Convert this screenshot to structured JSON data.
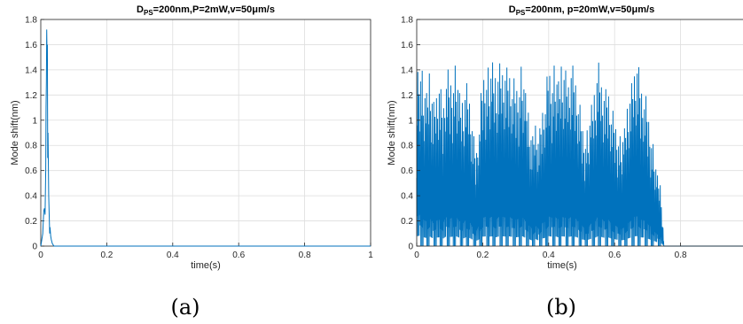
{
  "chart_data": [
    {
      "type": "line",
      "title": {
        "main": "D",
        "sub": "PS",
        "rest": "=200nm,P=2mW,v=50μm/s"
      },
      "xlabel": "time(s)",
      "ylabel": "Mode shift(nm)",
      "xlim": [
        0,
        1
      ],
      "ylim": [
        0,
        1.8
      ],
      "xticks": [
        "0",
        "0.2",
        "0.4",
        "0.6",
        "0.8",
        "1"
      ],
      "yticks": [
        "0",
        "0.2",
        "0.4",
        "0.6",
        "0.8",
        "1",
        "1.2",
        "1.4",
        "1.6",
        "1.8"
      ],
      "grid": true,
      "line_color": "#0072BD",
      "series": [
        {
          "x": [
            0,
            0.003,
            0.006,
            0.009,
            0.011,
            0.013,
            0.015,
            0.016,
            0.017,
            0.018,
            0.019,
            0.02,
            0.021,
            0.022,
            0.023,
            0.024,
            0.025,
            0.026,
            0.027,
            0.028,
            0.03,
            0.032,
            0.035,
            0.04,
            0.1,
            0.3,
            0.5,
            0.7,
            0.9,
            1
          ],
          "y": [
            0,
            0.05,
            0.1,
            0.28,
            0.3,
            0.25,
            0.6,
            1.1,
            1.3,
            1.72,
            1.5,
            1.6,
            0.7,
            0.9,
            0.65,
            0.4,
            0.3,
            0.2,
            0.1,
            0.15,
            0.08,
            0.05,
            0.02,
            0,
            0,
            0,
            0,
            0,
            0,
            0
          ]
        }
      ]
    },
    {
      "type": "line",
      "title": {
        "main": "D",
        "sub": "PS",
        "rest": "=200nm, p=20mW,v=50μm/s"
      },
      "xlabel": "time(s)",
      "ylabel": "Mode shift(nm)",
      "xlim": [
        0,
        1
      ],
      "ylim": [
        0,
        1.8
      ],
      "xticks": [
        "0",
        "0.2",
        "0.4",
        "0.6",
        "0.8",
        ""
      ],
      "yticks": [
        "0",
        "0.2",
        "0.4",
        "0.6",
        "0.8",
        "1",
        "1.2",
        "1.4",
        "1.6",
        "1.8"
      ],
      "grid": true,
      "line_color": "#0072BD",
      "series": [
        {
          "x": [
            0,
            0.01,
            0.02,
            0.03,
            0.04,
            0.05,
            0.06,
            0.07,
            0.08,
            0.09,
            0.1,
            0.11,
            0.12,
            0.13,
            0.14,
            0.15,
            0.16,
            0.17,
            0.18,
            0.19,
            0.2,
            0.21,
            0.22,
            0.23,
            0.24,
            0.25,
            0.26,
            0.27,
            0.28,
            0.29,
            0.3,
            0.31,
            0.32,
            0.33,
            0.34,
            0.35,
            0.36,
            0.37,
            0.38,
            0.39,
            0.4,
            0.41,
            0.42,
            0.43,
            0.44,
            0.45,
            0.46,
            0.47,
            0.48,
            0.49,
            0.5,
            0.51,
            0.52,
            0.53,
            0.54,
            0.55,
            0.56,
            0.57,
            0.58,
            0.59,
            0.6,
            0.61,
            0.62,
            0.63,
            0.64,
            0.65,
            0.66,
            0.67,
            0.68,
            0.69,
            0.7,
            0.71,
            0.72,
            0.73,
            0.74,
            0.75,
            0.8,
            0.9,
            1
          ],
          "y": [
            1.55,
            1.67,
            1.4,
            1.3,
            1.5,
            1.2,
            1.35,
            1.4,
            1.2,
            1.55,
            1.45,
            1.5,
            1.55,
            1.3,
            1.2,
            1.4,
            1.3,
            1.0,
            0.8,
            1.1,
            1.5,
            1.55,
            1.5,
            1.56,
            1.4,
            1.55,
            1.56,
            1.5,
            1.55,
            1.45,
            1.4,
            1.45,
            1.56,
            1.3,
            1.1,
            0.9,
            1.1,
            0.9,
            1.2,
            1.3,
            1.58,
            1.5,
            1.55,
            1.4,
            1.55,
            1.5,
            1.45,
            1.55,
            1.5,
            1.3,
            1.1,
            0.95,
            1.0,
            1.2,
            1.3,
            1.58,
            1.45,
            1.3,
            1.4,
            1.2,
            1.1,
            1.0,
            0.9,
            1.0,
            1.2,
            1.35,
            1.55,
            1.58,
            1.4,
            1.35,
            1.2,
            1.0,
            0.8,
            0.6,
            0.5,
            0,
            0,
            0,
            0
          ]
        }
      ]
    }
  ],
  "captions": [
    "(a)",
    "(b)"
  ]
}
